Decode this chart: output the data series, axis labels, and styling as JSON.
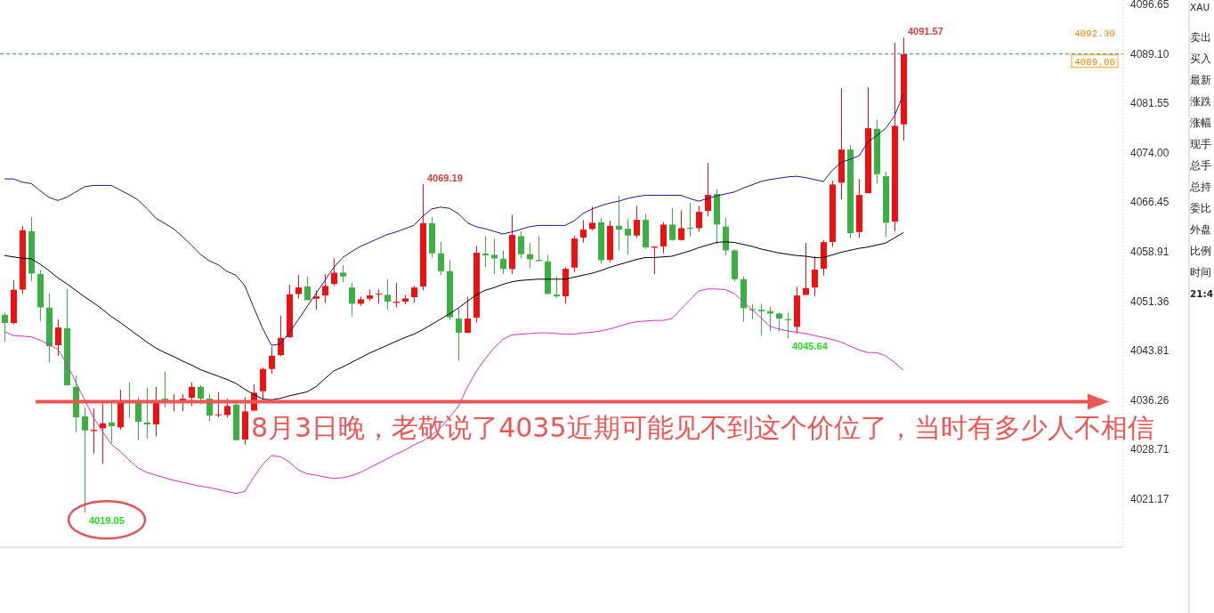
{
  "chart_data": {
    "type": "candlestick",
    "categories": [
      null,
      null,
      null,
      null,
      null,
      null,
      null,
      null,
      null,
      null,
      null,
      null,
      null,
      null,
      null,
      null,
      null,
      null,
      null,
      null,
      null,
      null,
      null,
      null,
      null,
      null,
      null,
      null,
      null,
      null,
      null,
      null,
      null,
      null,
      null,
      null,
      null,
      null,
      null,
      null,
      null,
      null,
      null,
      null,
      null,
      null,
      null,
      null,
      null,
      null,
      null,
      null,
      null,
      null,
      null,
      null,
      null,
      null,
      null,
      null,
      null,
      null,
      null,
      null,
      null,
      null,
      null,
      null,
      null,
      null,
      null,
      null,
      null,
      null,
      null,
      null,
      null,
      null,
      null,
      null,
      null,
      null,
      null,
      null,
      null,
      null,
      null,
      null,
      null,
      null,
      null,
      null,
      null,
      null,
      null,
      null,
      null,
      null,
      null,
      null,
      null,
      null
    ],
    "ohlc": [
      [
        4049.27,
        4049.58,
        4045.2,
        4048.0
      ],
      [
        4048.0,
        4054.56,
        4047.78,
        4053.07
      ],
      [
        4053.11,
        4062.84,
        4052.44,
        4062.17
      ],
      [
        4062.03,
        4064.2,
        4054.43,
        4055.56
      ],
      [
        4055.47,
        4056.06,
        4048.32,
        4050.4
      ],
      [
        4050.35,
        4052.53,
        4041.98,
        4044.47
      ],
      [
        4044.61,
        4048.54,
        4043.02,
        4047.32
      ],
      [
        4047.19,
        4053.21,
        4038.5,
        4038.5
      ],
      [
        4038.27,
        4039.99,
        4031.35,
        4033.61
      ],
      [
        4033.75,
        4035.11,
        4019.05,
        4031.62
      ],
      [
        4031.53,
        4034.97,
        4028.09,
        4031.71
      ],
      [
        4031.94,
        4035.78,
        4026.51,
        4032.71
      ],
      [
        4032.84,
        4035.78,
        4029.67,
        4032.25
      ],
      [
        4032.07,
        4037.82,
        4031.71,
        4035.87
      ],
      [
        4036.01,
        4038.95,
        4033.52,
        4035.87
      ],
      [
        4035.87,
        4036.69,
        4030.13,
        4032.93
      ],
      [
        4032.84,
        4038.14,
        4030.35,
        4032.53
      ],
      [
        4032.53,
        4038.27,
        4030.72,
        4036.14
      ],
      [
        4036.46,
        4040.63,
        4035.11,
        4036.14
      ],
      [
        4035.96,
        4037.14,
        4034.52,
        4036.14
      ],
      [
        4036.14,
        4037.14,
        4034.52,
        4036.46
      ],
      [
        4036.6,
        4038.95,
        4035.33,
        4038.27
      ],
      [
        4038.27,
        4038.5,
        4035.56,
        4036.46
      ],
      [
        4036.46,
        4037.23,
        4032.98,
        4033.88
      ],
      [
        4033.97,
        4037.46,
        4033.61,
        4034.06
      ],
      [
        4033.97,
        4036.46,
        4033.61,
        4035.33
      ],
      [
        4035.56,
        4035.78,
        4030.13,
        4030.13
      ],
      [
        4030.22,
        4036.69,
        4029.45,
        4034.52
      ],
      [
        4034.65,
        4038.63,
        4034.52,
        4037.37
      ],
      [
        4037.59,
        4041.21,
        4036.33,
        4040.99
      ],
      [
        4040.99,
        4044.38,
        4040.22,
        4043.02
      ],
      [
        4043.11,
        4049.13,
        4042.93,
        4045.74
      ],
      [
        4045.83,
        4053.88,
        4045.74,
        4052.39
      ],
      [
        4052.44,
        4055.33,
        4051.76,
        4053.43
      ],
      [
        4053.57,
        4055.11,
        4051.49,
        4051.49
      ],
      [
        4051.71,
        4052.98,
        4050.04,
        4052.07
      ],
      [
        4052.21,
        4055.47,
        4051.08,
        4053.66
      ],
      [
        4053.97,
        4057.87,
        4053.66,
        4055.69
      ],
      [
        4055.69,
        4056.83,
        4054.25,
        4055.11
      ],
      [
        4053.43,
        4054.11,
        4049.0,
        4050.94
      ],
      [
        4050.94,
        4052.07,
        4050.63,
        4051.62
      ],
      [
        4051.71,
        4053.12,
        4051.4,
        4052.21
      ],
      [
        4052.34,
        4053.12,
        4050.94,
        4052.48
      ],
      [
        4052.3,
        4054.7,
        4050.04,
        4051.26
      ],
      [
        4051.08,
        4054.11,
        4050.4,
        4051.26
      ],
      [
        4051.26,
        4052.3,
        4050.85,
        4051.76
      ],
      [
        4051.94,
        4053.66,
        4051.08,
        4053.43
      ],
      [
        4053.57,
        4069.19,
        4052.98,
        4063.25
      ],
      [
        4063.25,
        4064.2,
        4057.96,
        4058.64
      ],
      [
        4058.64,
        4060.36,
        4055.33,
        4055.92
      ],
      [
        4055.92,
        4057.64,
        4048.45,
        4048.9
      ],
      [
        4048.68,
        4050.17,
        4042.21,
        4046.51
      ],
      [
        4046.51,
        4051.98,
        4046.51,
        4048.68
      ],
      [
        4048.82,
        4059.77,
        4048.09,
        4058.73
      ],
      [
        4058.59,
        4061.26,
        4056.51,
        4058.32
      ],
      [
        4058.41,
        4060.9,
        4055.47,
        4057.87
      ],
      [
        4057.82,
        4059.09,
        4055.47,
        4056.24
      ],
      [
        4056.24,
        4064.52,
        4055.47,
        4061.44
      ],
      [
        4061.26,
        4062.03,
        4057.87,
        4058.5
      ],
      [
        4058.5,
        4060.22,
        4056.37,
        4057.73
      ],
      [
        4057.64,
        4061.26,
        4057.46,
        4057.46
      ],
      [
        4057.41,
        4058.41,
        4052.44,
        4052.44
      ],
      [
        4052.34,
        4055.11,
        4051.85,
        4052.07
      ],
      [
        4052.07,
        4056.51,
        4050.94,
        4056.28
      ],
      [
        4056.46,
        4061.35,
        4055.78,
        4060.9
      ],
      [
        4061.03,
        4063.7,
        4060.31,
        4062.26
      ],
      [
        4062.35,
        4065.79,
        4062.12,
        4063.3
      ],
      [
        4063.39,
        4064.07,
        4057.05,
        4057.59
      ],
      [
        4057.64,
        4063.61,
        4057.28,
        4062.84
      ],
      [
        4062.85,
        4067.46,
        4059.09,
        4062.26
      ],
      [
        4062.39,
        4063.84,
        4058.41,
        4061.35
      ],
      [
        4061.35,
        4065.88,
        4061.03,
        4063.75
      ],
      [
        4063.75,
        4064.66,
        4059.32,
        4059.54
      ],
      [
        4059.5,
        4059.68,
        4055.47,
        4059.68
      ],
      [
        4059.68,
        4063.39,
        4058.64,
        4063.03
      ],
      [
        4063.03,
        4065.56,
        4060.58,
        4060.67
      ],
      [
        4060.67,
        4065.2,
        4060.58,
        4062.48
      ],
      [
        4062.57,
        4066.33,
        4061.22,
        4062.39
      ],
      [
        4062.48,
        4065.88,
        4061.94,
        4064.97
      ],
      [
        4065.11,
        4072.44,
        4064.29,
        4067.55
      ],
      [
        4067.69,
        4068.46,
        4060.0,
        4063.03
      ],
      [
        4062.71,
        4064.07,
        4058.32,
        4059.09
      ],
      [
        4059.09,
        4059.23,
        4054.34,
        4054.7
      ],
      [
        4054.7,
        4055.11,
        4048.23,
        4050.27
      ],
      [
        4050.13,
        4050.95,
        4048.55,
        4049.95
      ],
      [
        4050.04,
        4050.95,
        4046.06,
        4049.81
      ],
      [
        4049.81,
        4050.49,
        4046.74,
        4049.45
      ],
      [
        4049.45,
        4049.59,
        4046.74,
        4048.68
      ],
      [
        4048.59,
        4049.59,
        4045.64,
        4048.41
      ],
      [
        4047.41,
        4053.52,
        4046.42,
        4052.21
      ],
      [
        4052.3,
        4060.22,
        4052.3,
        4053.34
      ],
      [
        4053.43,
        4058.19,
        4052.07,
        4056.15
      ],
      [
        4056.29,
        4060.67,
        4055.24,
        4060.36
      ],
      [
        4060.36,
        4069.72,
        4059.68,
        4069.14
      ],
      [
        4069.41,
        4083.84,
        4066.87,
        4074.48
      ],
      [
        4074.48,
        4075.16,
        4060.9,
        4061.71
      ],
      [
        4061.89,
        4069.95,
        4061.03,
        4067.55
      ],
      [
        4067.82,
        4083.98,
        4067.82,
        4077.73
      ],
      [
        4077.64,
        4079.0,
        4069.27,
        4070.72
      ],
      [
        4070.41,
        4071.08,
        4061.13,
        4063.3
      ],
      [
        4063.48,
        4090.77,
        4062.03,
        4078.09
      ],
      [
        4078.32,
        4091.57,
        4075.83,
        4089.06
      ]
    ],
    "colors": [
      "#3cb043",
      "#ee1111",
      "#ee1111",
      "#3cb043",
      "#3cb043",
      "#3cb043",
      "#ee1111",
      "#3cb043",
      "#3cb043",
      "#3cb043",
      "#ee1111",
      "#ee1111",
      "#3cb043",
      "#ee1111",
      "#3cb043",
      "#3cb043",
      "#3cb043",
      "#ee1111",
      "#3cb043",
      "#ee1111",
      "#ee1111",
      "#ee1111",
      "#3cb043",
      "#3cb043",
      "#ee1111",
      "#ee1111",
      "#3cb043",
      "#ee1111",
      "#ee1111",
      "#ee1111",
      "#ee1111",
      "#ee1111",
      "#ee1111",
      "#ee1111",
      "#3cb043",
      "#ee1111",
      "#ee1111",
      "#ee1111",
      "#3cb043",
      "#3cb043",
      "#ee1111",
      "#ee1111",
      "#ee1111",
      "#3cb043",
      "#ee1111",
      "#ee1111",
      "#ee1111",
      "#ee1111",
      "#3cb043",
      "#3cb043",
      "#3cb043",
      "#3cb043",
      "#ee1111",
      "#ee1111",
      "#3cb043",
      "#3cb043",
      "#3cb043",
      "#ee1111",
      "#3cb043",
      "#3cb043",
      "#3cb043",
      "#3cb043",
      "#3cb043",
      "#ee1111",
      "#ee1111",
      "#ee1111",
      "#ee1111",
      "#3cb043",
      "#ee1111",
      "#3cb043",
      "#3cb043",
      "#ee1111",
      "#3cb043",
      "#ee1111",
      "#ee1111",
      "#3cb043",
      "#ee1111",
      "#3cb043",
      "#ee1111",
      "#ee1111",
      "#3cb043",
      "#3cb043",
      "#3cb043",
      "#3cb043",
      "#3cb043",
      "#3cb043",
      "#3cb043",
      "#3cb043",
      "#3cb043",
      "#ee1111",
      "#ee1111",
      "#ee1111",
      "#ee1111",
      "#ee1111",
      "#ee1111",
      "#3cb043",
      "#ee1111",
      "#ee1111",
      "#3cb043",
      "#3cb043",
      "#ee1111",
      "#ee1111"
    ],
    "series": [
      {
        "type": "line",
        "color": "#1a1a80",
        "values": [
          4070.0,
          4070.0,
          4069.5,
          4069.3,
          4068.2,
          4067.2,
          4066.7,
          4067.2,
          4068.0,
          4068.8,
          4069.0,
          4069.0,
          4069.0,
          4068.3,
          4067.6,
          4066.8,
          4065.5,
          4064.0,
          4063.2,
          4062.4,
          4061.2,
          4059.9,
          4058.5,
          4057.5,
          4056.9,
          4055.9,
          4055.3,
          4053.7,
          4050.4,
          4047.2,
          4044.6,
          4044.8,
          4046.5,
          4048.5,
          4050.5,
          4052.5,
          4054.5,
          4056.5,
          4058.0,
          4058.9,
          4059.7,
          4060.3,
          4060.9,
          4061.5,
          4061.9,
          4062.4,
          4062.9,
          4064.3,
          4065.4,
          4065.7,
          4065.5,
          4064.7,
          4063.3,
          4062.7,
          4062.4,
          4062.0,
          4061.6,
          4061.9,
          4062.3,
          4062.7,
          4062.9,
          4062.9,
          4062.9,
          4062.9,
          4063.6,
          4064.7,
          4065.4,
          4065.9,
          4066.3,
          4066.6,
          4067.0,
          4067.3,
          4067.5,
          4067.5,
          4067.5,
          4067.5,
          4067.5,
          4067.0,
          4066.6,
          4067.0,
          4067.4,
          4067.7,
          4068.0,
          4068.6,
          4069.1,
          4069.6,
          4069.9,
          4070.1,
          4070.3,
          4070.4,
          4070.2,
          4069.9,
          4069.6,
          4071.3,
          4072.5,
          4073.0,
          4073.5,
          4075.6,
          4076.6,
          4077.7,
          4079.6,
          4082.9
        ]
      },
      {
        "type": "line",
        "color": "#000000",
        "values": [
          4058.3,
          4058.1,
          4057.9,
          4057.8,
          4057.0,
          4056.0,
          4054.9,
          4054.0,
          4053.0,
          4052.0,
          4051.1,
          4050.1,
          4049.0,
          4048.1,
          4047.1,
          4046.1,
          4045.1,
          4044.2,
          4043.5,
          4042.9,
          4042.2,
          4041.6,
          4040.9,
          4040.4,
          4039.9,
          4039.4,
          4038.8,
          4037.9,
          4037.1,
          4036.4,
          4036.3,
          4036.5,
          4036.9,
          4037.2,
          4037.5,
          4038.3,
          4039.5,
          4040.7,
          4041.3,
          4042.0,
          4042.7,
          4043.4,
          4044.0,
          4044.6,
          4045.2,
          4045.8,
          4046.3,
          4047.0,
          4047.8,
          4048.6,
          4049.4,
          4050.3,
          4051.3,
          4052.3,
          4053.0,
          4053.4,
          4053.9,
          4054.3,
          4054.5,
          4054.6,
          4054.7,
          4054.7,
          4054.7,
          4054.7,
          4055.0,
          4055.3,
          4055.6,
          4056.0,
          4056.5,
          4056.9,
          4057.3,
          4057.7,
          4058.0,
          4058.0,
          4058.1,
          4058.2,
          4058.6,
          4059.0,
          4059.5,
          4059.9,
          4060.3,
          4060.4,
          4060.3,
          4060.0,
          4059.7,
          4059.3,
          4059.0,
          4058.7,
          4058.5,
          4058.3,
          4058.2,
          4058.0,
          4058.0,
          4058.4,
          4058.8,
          4059.1,
          4059.4,
          4059.6,
          4059.9,
          4060.2,
          4061.0,
          4061.8
        ]
      },
      {
        "type": "line",
        "color": "#cc33cc",
        "values": [
          4046.7,
          4046.1,
          4046.0,
          4045.9,
          4045.4,
          4044.7,
          4044.0,
          4041.8,
          4039.0,
          4036.3,
          4033.6,
          4031.5,
          4029.5,
          4028.4,
          4027.1,
          4025.9,
          4025.2,
          4024.8,
          4024.4,
          4024.0,
          4023.7,
          4023.4,
          4023.1,
          4022.9,
          4022.6,
          4022.3,
          4022.0,
          4022.3,
          4024.5,
          4026.4,
          4027.8,
          4027.6,
          4026.8,
          4025.6,
          4025.0,
          4024.8,
          4024.5,
          4024.3,
          4024.4,
          4024.7,
          4025.2,
          4025.9,
          4026.6,
          4027.3,
          4028.0,
          4028.6,
          4029.4,
          4030.0,
          4030.9,
          4032.0,
          4033.6,
          4035.3,
          4038.2,
          4040.6,
          4042.5,
          4044.2,
          4045.5,
          4046.2,
          4046.3,
          4046.4,
          4046.5,
          4046.5,
          4046.4,
          4046.3,
          4046.3,
          4046.5,
          4046.6,
          4046.8,
          4047.1,
          4047.5,
          4047.9,
          4048.2,
          4048.3,
          4048.4,
          4048.4,
          4048.7,
          4050.1,
          4051.5,
          4052.9,
          4053.2,
          4053.2,
          4053.1,
          4052.5,
          4051.3,
          4050.0,
          4048.8,
          4047.5,
          4047.1,
          4046.8,
          4046.6,
          4046.4,
          4046.1,
          4045.8,
          4045.5,
          4045.1,
          4044.5,
          4043.9,
          4043.5,
          4043.5,
          4043.0,
          4042.0,
          4040.8
        ]
      }
    ],
    "ylim": [
      4013.8,
      4097.3
    ],
    "yticks": [
      4096.65,
      {
        "value": 4089.1,
        "label": "4089.10"
      },
      4081.55,
      {
        "value": 4074,
        "label": "4074.00"
      },
      4066.45,
      4058.91,
      4051.36,
      4043.81,
      4036.26,
      4028.71,
      4021.17
    ],
    "tick_labels": "y",
    "ref_lines": [
      {
        "axis": "y",
        "value": 4089.06,
        "label": "4089.06",
        "color": "#3a7bd5",
        "line_style": "dashed"
      },
      {
        "axis": "y",
        "value": 4036,
        "label": "8月3日晚，老敬说了4035近期可能见不到这个价位了，当时有多少人不相信",
        "color": "#ee5555",
        "line_style": "solid"
      }
    ],
    "annotations": [
      "4091.57",
      "4069.19",
      "4045.64",
      "4019.05",
      "4092.30",
      "XAU",
      "卖出",
      "买入",
      "最新",
      "涨跌",
      "涨幅",
      "现手",
      "总手",
      "总持",
      "委比",
      "外盘",
      "比例",
      "时间",
      "21:4"
    ]
  }
}
